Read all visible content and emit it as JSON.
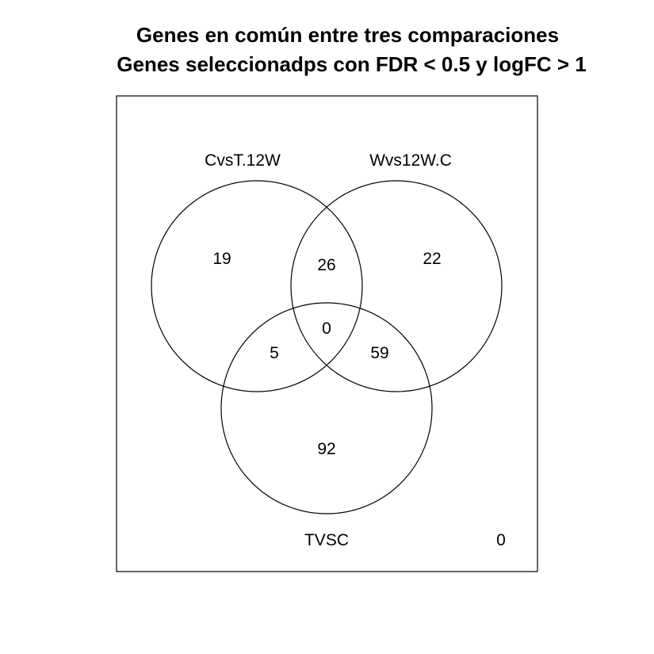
{
  "title": {
    "line1": "Genes en común entre tres comparaciones",
    "line2": "Genes seleccionadps con FDR < 0.5 y logFC > 1"
  },
  "sets": [
    {
      "name": "CvsT.12W"
    },
    {
      "name": "Wvs12W.C"
    },
    {
      "name": "TVSC"
    }
  ],
  "regions": {
    "only_a": "19",
    "only_b": "22",
    "only_c": "92",
    "ab": "26",
    "ac": "5",
    "bc": "59",
    "abc": "0",
    "outside": "0"
  }
}
